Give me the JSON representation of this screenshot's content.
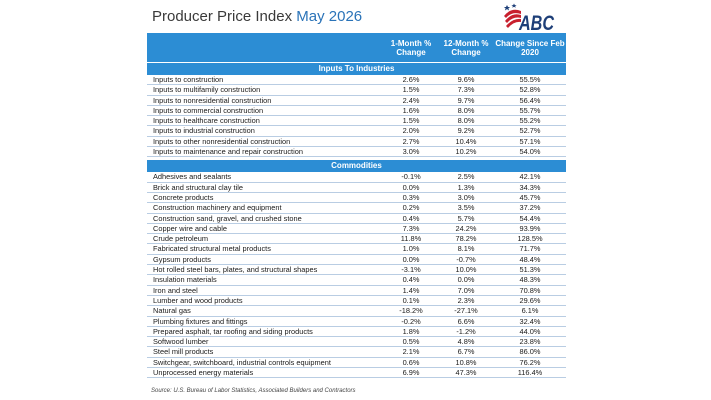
{
  "title": {
    "main": "Producer Price Index ",
    "accent": "May 2026"
  },
  "logo": {
    "text": "ABC"
  },
  "columns": {
    "item": "",
    "one_month": "1-Month % Change",
    "twelve_month": "12-Month % Change",
    "since_feb2020": "Change Since Feb 2020"
  },
  "sections": {
    "inputs": {
      "title": "Inputs To Industries",
      "rows": [
        {
          "name": "Inputs to construction",
          "m1": "2.6%",
          "m12": "9.6%",
          "since": "55.5%"
        },
        {
          "name": "Inputs to multifamily construction",
          "m1": "1.5%",
          "m12": "7.3%",
          "since": "52.8%"
        },
        {
          "name": "Inputs to nonresidential construction",
          "m1": "2.4%",
          "m12": "9.7%",
          "since": "56.4%"
        },
        {
          "name": "Inputs to commercial construction",
          "m1": "1.6%",
          "m12": "8.0%",
          "since": "55.7%"
        },
        {
          "name": "Inputs to healthcare construction",
          "m1": "1.5%",
          "m12": "8.0%",
          "since": "55.2%"
        },
        {
          "name": "Inputs to industrial construction",
          "m1": "2.0%",
          "m12": "9.2%",
          "since": "52.7%"
        },
        {
          "name": "Inputs to other nonresidential construction",
          "m1": "2.7%",
          "m12": "10.4%",
          "since": "57.1%"
        },
        {
          "name": "Inputs to maintenance and repair construction",
          "m1": "3.0%",
          "m12": "10.2%",
          "since": "54.0%"
        }
      ]
    },
    "commodities": {
      "title": "Commodities",
      "rows": [
        {
          "name": "Adhesives and sealants",
          "m1": "-0.1%",
          "m12": "2.5%",
          "since": "42.1%"
        },
        {
          "name": "Brick and structural clay tile",
          "m1": "0.0%",
          "m12": "1.3%",
          "since": "34.3%"
        },
        {
          "name": "Concrete products",
          "m1": "0.3%",
          "m12": "3.0%",
          "since": "45.7%"
        },
        {
          "name": "Construction machinery and equipment",
          "m1": "0.2%",
          "m12": "3.5%",
          "since": "37.2%"
        },
        {
          "name": "Construction sand, gravel, and crushed stone",
          "m1": "0.4%",
          "m12": "5.7%",
          "since": "54.4%"
        },
        {
          "name": "Copper wire and cable",
          "m1": "7.3%",
          "m12": "24.2%",
          "since": "93.9%"
        },
        {
          "name": "Crude petroleum",
          "m1": "11.8%",
          "m12": "78.2%",
          "since": "128.5%"
        },
        {
          "name": "Fabricated structural metal products",
          "m1": "1.0%",
          "m12": "8.1%",
          "since": "71.7%"
        },
        {
          "name": "Gypsum products",
          "m1": "0.0%",
          "m12": "-0.7%",
          "since": "48.4%"
        },
        {
          "name": "Hot rolled steel bars, plates, and structural shapes",
          "m1": "-3.1%",
          "m12": "10.0%",
          "since": "51.3%"
        },
        {
          "name": "Insulation materials",
          "m1": "0.4%",
          "m12": "0.0%",
          "since": "48.3%"
        },
        {
          "name": "Iron and steel",
          "m1": "1.4%",
          "m12": "7.0%",
          "since": "70.8%"
        },
        {
          "name": "Lumber and wood products",
          "m1": "0.1%",
          "m12": "2.3%",
          "since": "29.6%"
        },
        {
          "name": "Natural gas",
          "m1": "-18.2%",
          "m12": "-27.1%",
          "since": "6.1%"
        },
        {
          "name": "Plumbing fixtures and fittings",
          "m1": "-0.2%",
          "m12": "6.6%",
          "since": "32.4%"
        },
        {
          "name": "Prepared asphalt, tar roofing and siding products",
          "m1": "1.8%",
          "m12": "-1.2%",
          "since": "44.0%"
        },
        {
          "name": "Softwood lumber",
          "m1": "0.5%",
          "m12": "4.8%",
          "since": "23.8%"
        },
        {
          "name": "Steel mill products",
          "m1": "2.1%",
          "m12": "6.7%",
          "since": "86.0%"
        },
        {
          "name": "Switchgear, switchboard, industrial controls equipment",
          "m1": "0.6%",
          "m12": "10.8%",
          "since": "76.2%"
        },
        {
          "name": "Unprocessed energy materials",
          "m1": "6.9%",
          "m12": "47.3%",
          "since": "116.4%"
        }
      ]
    }
  },
  "source": "Source: U.S. Bureau of Labor Statistics, Associated Builders and Contractors",
  "colors": {
    "header_blue": "#2c8dd4",
    "title_accent": "#2a73b8",
    "logo_red": "#c8202e",
    "logo_navy": "#1e3f78",
    "row_rule": "#b9cde3"
  }
}
